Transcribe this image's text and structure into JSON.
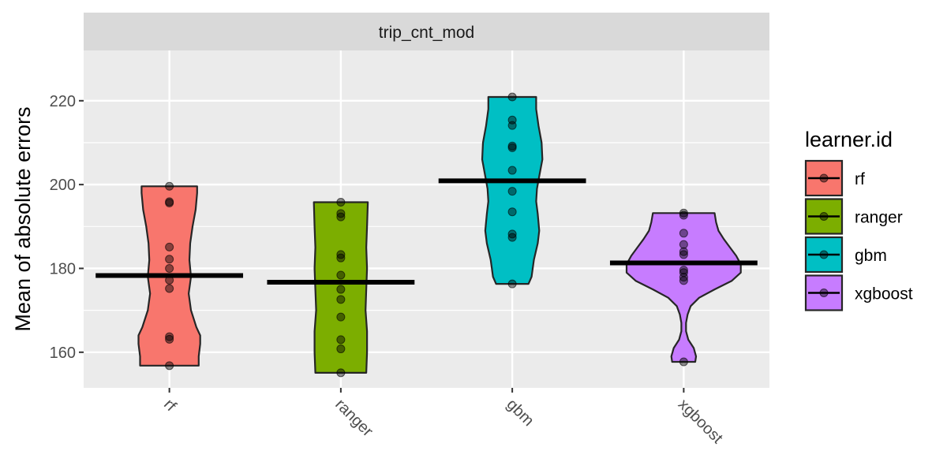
{
  "chart_data": {
    "type": "violin",
    "facet": "trip_cnt_mod",
    "ylabel": "Mean of absolute errors",
    "xlabel": "",
    "categories": [
      "rf",
      "ranger",
      "gbm",
      "xgboost"
    ],
    "ylim": [
      151.5,
      232
    ],
    "yticks": [
      160,
      180,
      200,
      220
    ],
    "grid": true,
    "legend": {
      "title": "learner.id",
      "position": "right",
      "entries": [
        "rf",
        "ranger",
        "gbm",
        "xgboost"
      ]
    },
    "colors": [
      "#F8766D",
      "#7CAE00",
      "#00BFC4",
      "#C77CFF"
    ],
    "series": [
      {
        "name": "rf",
        "median": 178.3,
        "range": [
          156.8,
          199.6
        ],
        "points": [
          199.6,
          195.9,
          195.6,
          185.1,
          182.2,
          180.0,
          177.2,
          175.2,
          163.7,
          163.1,
          156.8
        ],
        "density": [
          [
            156.8,
            0.38
          ],
          [
            159,
            0.38
          ],
          [
            162,
            0.4
          ],
          [
            164,
            0.4
          ],
          [
            166,
            0.35
          ],
          [
            170,
            0.28
          ],
          [
            174,
            0.25
          ],
          [
            178,
            0.28
          ],
          [
            182,
            0.26
          ],
          [
            186,
            0.27
          ],
          [
            190,
            0.3
          ],
          [
            194,
            0.34
          ],
          [
            198,
            0.36
          ],
          [
            199.6,
            0.36
          ]
        ]
      },
      {
        "name": "ranger",
        "median": 176.7,
        "range": [
          155.1,
          195.8
        ],
        "points": [
          195.8,
          193.1,
          192.3,
          183.3,
          182.5,
          178.4,
          175.0,
          172.6,
          168.4,
          163.0,
          160.8,
          155.1
        ],
        "density": [
          [
            155.1,
            0.33
          ],
          [
            160,
            0.34
          ],
          [
            165,
            0.34
          ],
          [
            170,
            0.32
          ],
          [
            175,
            0.33
          ],
          [
            180,
            0.34
          ],
          [
            185,
            0.33
          ],
          [
            190,
            0.34
          ],
          [
            195.8,
            0.35
          ]
        ]
      },
      {
        "name": "gbm",
        "median": 200.9,
        "range": [
          176.3,
          220.9
        ],
        "points": [
          220.9,
          215.4,
          214.1,
          209.2,
          208.8,
          203.4,
          198.4,
          193.5,
          188.2,
          187.4,
          176.3
        ],
        "density": [
          [
            176.3,
            0.21
          ],
          [
            178,
            0.25
          ],
          [
            182,
            0.28
          ],
          [
            186,
            0.33
          ],
          [
            189,
            0.35
          ],
          [
            193,
            0.33
          ],
          [
            196,
            0.31
          ],
          [
            199,
            0.32
          ],
          [
            202,
            0.35
          ],
          [
            206,
            0.39
          ],
          [
            210,
            0.38
          ],
          [
            214,
            0.34
          ],
          [
            218,
            0.31
          ],
          [
            220.9,
            0.31
          ]
        ]
      },
      {
        "name": "xgboost",
        "median": 181.3,
        "range": [
          157.7,
          193.2
        ],
        "points": [
          193.2,
          192.7,
          188.4,
          185.7,
          184.0,
          183.3,
          179.6,
          179.0,
          177.9,
          177.1,
          157.7
        ],
        "density": [
          [
            157.7,
            0.15
          ],
          [
            159,
            0.16
          ],
          [
            161,
            0.13
          ],
          [
            163,
            0.06
          ],
          [
            165,
            0.03
          ],
          [
            167,
            0.03
          ],
          [
            169,
            0.05
          ],
          [
            171,
            0.09
          ],
          [
            173,
            0.2
          ],
          [
            175,
            0.4
          ],
          [
            177,
            0.62
          ],
          [
            179,
            0.74
          ],
          [
            181,
            0.74
          ],
          [
            183,
            0.68
          ],
          [
            185,
            0.6
          ],
          [
            187,
            0.52
          ],
          [
            189,
            0.45
          ],
          [
            191,
            0.42
          ],
          [
            193.2,
            0.4
          ]
        ]
      }
    ]
  }
}
